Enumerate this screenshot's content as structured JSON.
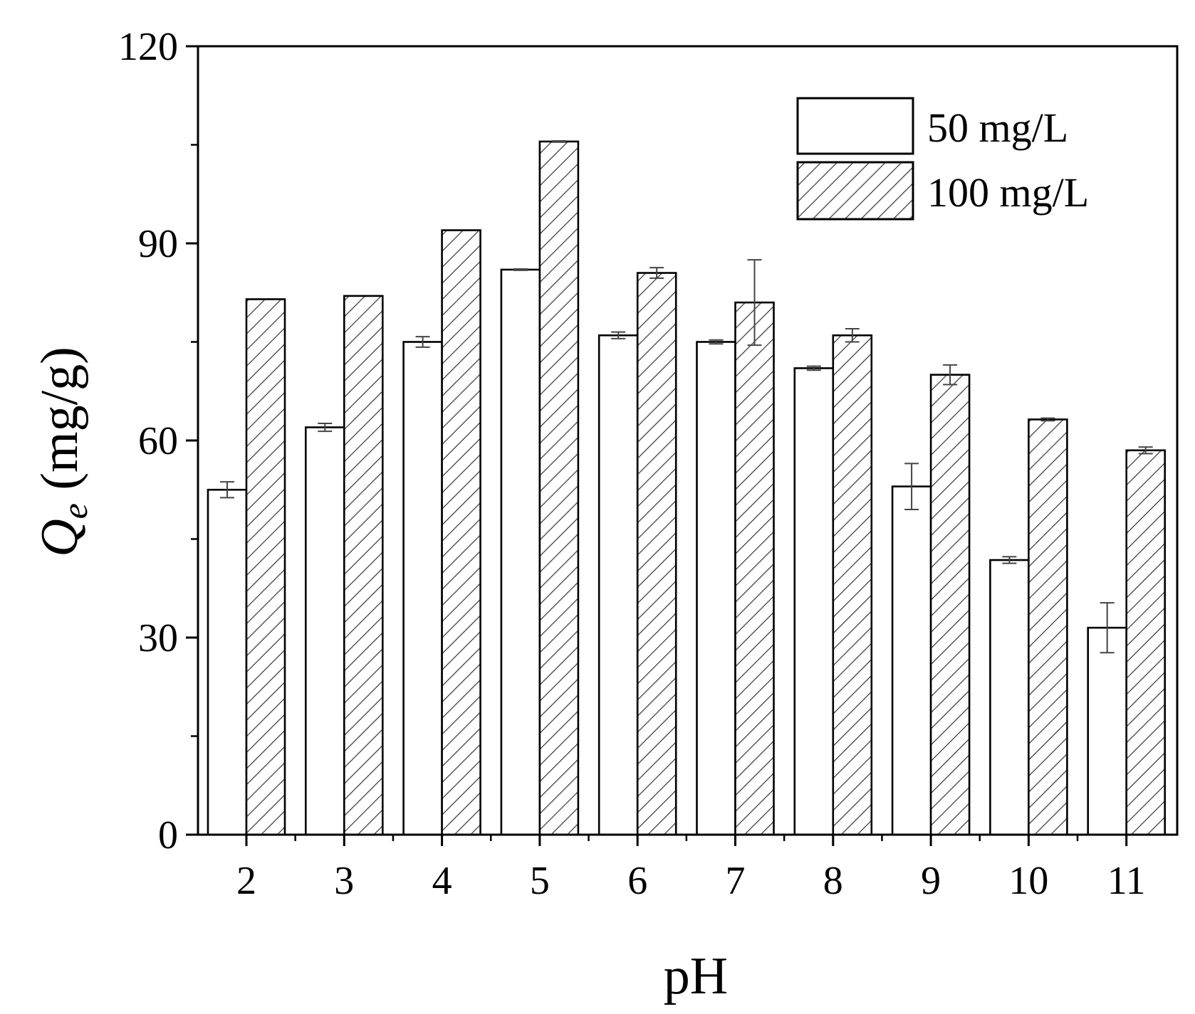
{
  "chart_data": {
    "type": "bar",
    "title": "",
    "xlabel": "pH",
    "ylabel": {
      "symbol": "Q",
      "subscript": "e",
      "unit": "(mg/g)"
    },
    "categories": [
      "2",
      "3",
      "4",
      "5",
      "6",
      "7",
      "8",
      "9",
      "10",
      "11"
    ],
    "ylim": [
      0,
      120
    ],
    "yticks": [
      "0",
      "30",
      "60",
      "90",
      "120"
    ],
    "minor_ytick_step": 15,
    "grid": false,
    "legend_position": "top-right",
    "series": [
      {
        "name": "50 mg/L",
        "fill": "none",
        "values": [
          52.5,
          62.0,
          75.0,
          86.0,
          76.0,
          75.0,
          71.0,
          53.0,
          41.8,
          31.5
        ],
        "errors": [
          1.2,
          0.6,
          0.8,
          0.1,
          0.5,
          0.3,
          0.3,
          3.5,
          0.5,
          3.8
        ]
      },
      {
        "name": "100 mg/L",
        "fill": "hatch",
        "values": [
          81.5,
          82.0,
          92.0,
          105.5,
          85.5,
          81.0,
          76.0,
          70.0,
          63.2,
          58.5
        ],
        "errors": [
          0.0,
          0.0,
          0.0,
          0.1,
          0.8,
          6.5,
          1.0,
          1.5,
          0.2,
          0.5
        ]
      }
    ],
    "colors": {
      "stroke": "#000000",
      "background": "#ffffff",
      "bar_fill": "#ffffff",
      "hatch": "#333333",
      "error_bar": "#444444"
    }
  }
}
